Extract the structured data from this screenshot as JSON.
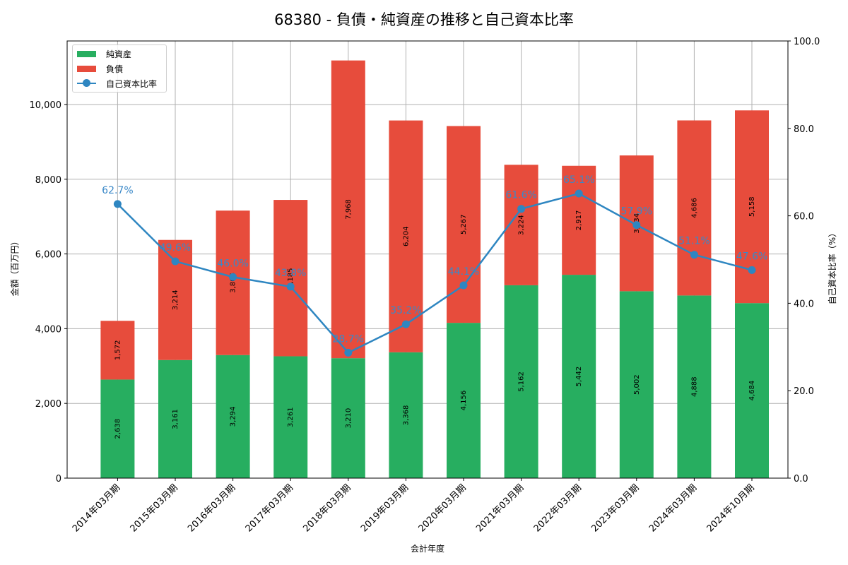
{
  "chart_data": {
    "type": "bar",
    "title": "68380 - 負債・純資産の推移と自己資本比率",
    "xlabel": "会計年度",
    "ylabel": "金額（百万円）",
    "y2label": "自己資本比率（%）",
    "ylim": [
      0,
      11700
    ],
    "y2lim": [
      0,
      100
    ],
    "yticks": [
      "0",
      "2,000",
      "4,000",
      "6,000",
      "8,000",
      "10,000"
    ],
    "y2ticks": [
      "0.0",
      "20.0",
      "40.0",
      "60.0",
      "80.0",
      "100.0"
    ],
    "grid": true,
    "legend_position": "upper left",
    "stacked": true,
    "categories": [
      "2014年03月期",
      "2015年03月期",
      "2016年03月期",
      "2017年03月期",
      "2018年03月期",
      "2019年03月期",
      "2020年03月期",
      "2021年03月期",
      "2022年03月期",
      "2023年03月期",
      "2024年03月期",
      "2024年10月期"
    ],
    "series": [
      {
        "name": "純資産",
        "type": "bar",
        "color": "#27ae60",
        "values": [
          2638,
          3161,
          3294,
          3261,
          3210,
          3368,
          4156,
          5162,
          5442,
          5002,
          4888,
          4684
        ],
        "labels": [
          "2,638",
          "3,161",
          "3,294",
          "3,261",
          "3,210",
          "3,368",
          "4,156",
          "5,162",
          "5,442",
          "5,002",
          "4,888",
          "4,684"
        ]
      },
      {
        "name": "負債",
        "type": "bar",
        "color": "#e74c3c",
        "values": [
          1572,
          3214,
          3866,
          4185,
          7968,
          6204,
          5267,
          3224,
          2917,
          3634,
          4686,
          5158
        ],
        "labels": [
          "1,572",
          "3,214",
          "3,866",
          "4,185",
          "7,968",
          "6,204",
          "5,267",
          "3,224",
          "2,917",
          "3,634",
          "4,686",
          "5,158"
        ]
      },
      {
        "name": "自己資本比率",
        "type": "line",
        "axis": "right",
        "color": "#2e86c1",
        "values": [
          62.7,
          49.6,
          46.0,
          43.8,
          28.7,
          35.2,
          44.1,
          61.6,
          65.1,
          57.9,
          51.1,
          47.6
        ],
        "labels": [
          "62.7%",
          "49.6%",
          "46.0%",
          "43.8%",
          "28.7%",
          "35.2%",
          "44.1%",
          "61.6%",
          "65.1%",
          "57.9%",
          "51.1%",
          "47.6%"
        ]
      }
    ]
  },
  "legend": {
    "items": [
      {
        "label": "純資産",
        "color": "#27ae60"
      },
      {
        "label": "負債",
        "color": "#e74c3c"
      },
      {
        "label": "自己資本比率",
        "color": "#2e86c1"
      }
    ]
  }
}
